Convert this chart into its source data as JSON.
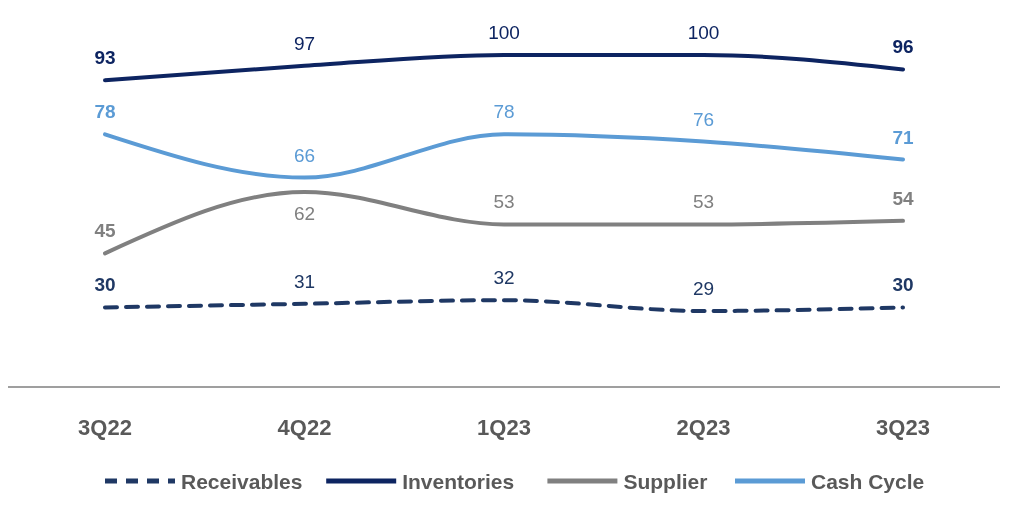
{
  "chart_data": {
    "type": "line",
    "categories": [
      "3Q22",
      "4Q22",
      "1Q23",
      "2Q23",
      "3Q23"
    ],
    "series": [
      {
        "name": "Receivables",
        "color": "#1f3864",
        "line_style": "dashed",
        "values": [
          30,
          31,
          32,
          29,
          30
        ]
      },
      {
        "name": "Inventories",
        "color": "#0d2461",
        "line_style": "solid",
        "values": [
          93,
          97,
          100,
          100,
          96
        ]
      },
      {
        "name": "Supplier",
        "color": "#808080",
        "line_style": "solid",
        "values": [
          45,
          62,
          53,
          53,
          54
        ]
      },
      {
        "name": "Cash Cycle",
        "color": "#5b9bd5",
        "line_style": "solid",
        "values": [
          78,
          66,
          78,
          76,
          71
        ]
      }
    ],
    "data_labels": true,
    "legend": "bottom",
    "marker": "none",
    "tick_labels": "x"
  }
}
